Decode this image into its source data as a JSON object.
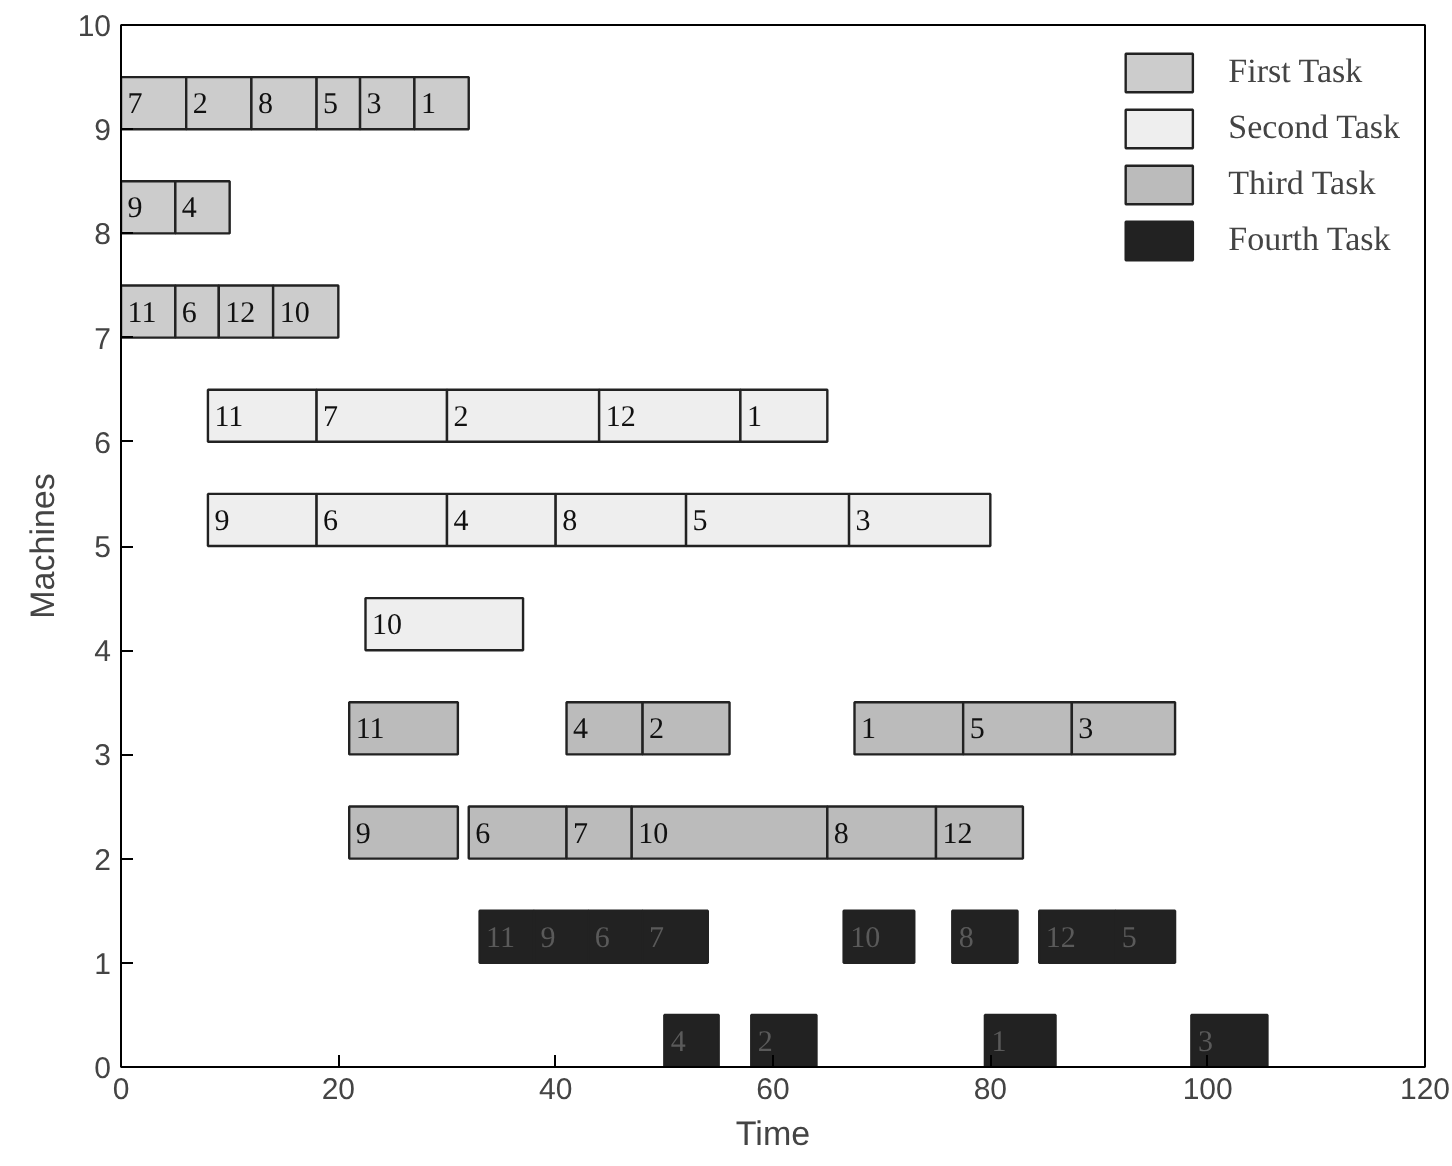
{
  "chart_data": {
    "type": "bar",
    "orientation": "horizontal",
    "xlabel": "Time",
    "ylabel": "Machines",
    "xlim": [
      0,
      120
    ],
    "xticks": [
      0,
      20,
      40,
      60,
      80,
      100,
      120
    ],
    "ylim": [
      0,
      10
    ],
    "yticks": [
      0,
      1,
      2,
      3,
      4,
      5,
      6,
      7,
      8,
      9,
      10
    ],
    "grid": false,
    "legend": "top right",
    "series": [
      {
        "name": "First Task",
        "color": "#cccccc",
        "x": [
          9
        ],
        "base": [
          0
        ],
        "values": [
          6
        ]
      },
      {
        "color": "#cccccc",
        "x": [
          9
        ],
        "base": [
          6
        ],
        "values": [
          6
        ]
      },
      {
        "color": "#cccccc",
        "x": [
          9
        ],
        "base": [
          12
        ],
        "values": [
          6
        ]
      },
      {
        "color": "#cccccc",
        "x": [
          9
        ],
        "base": [
          18
        ],
        "values": [
          4
        ]
      },
      {
        "color": "#cccccc",
        "x": [
          9
        ],
        "base": [
          22
        ],
        "values": [
          5
        ]
      },
      {
        "color": "#cccccc",
        "x": [
          9
        ],
        "base": [
          27
        ],
        "values": [
          5
        ]
      },
      {
        "color": "#cccccc",
        "x": [
          8
        ],
        "base": [
          0
        ],
        "values": [
          5
        ]
      },
      {
        "color": "#cccccc",
        "x": [
          8
        ],
        "base": [
          5
        ],
        "values": [
          5
        ]
      },
      {
        "color": "#cccccc",
        "x": [
          7
        ],
        "base": [
          0
        ],
        "values": [
          5
        ]
      },
      {
        "color": "#cccccc",
        "x": [
          7
        ],
        "base": [
          5
        ],
        "values": [
          4
        ]
      },
      {
        "color": "#cccccc",
        "x": [
          7
        ],
        "base": [
          9
        ],
        "values": [
          5
        ]
      },
      {
        "color": "#cccccc",
        "x": [
          7
        ],
        "base": [
          14
        ],
        "values": [
          6
        ]
      },
      {
        "name": "Second Task",
        "color": "#eeeeee",
        "x": [
          6
        ],
        "base": [
          8
        ],
        "values": [
          10
        ]
      },
      {
        "color": "#eeeeee",
        "x": [
          6
        ],
        "base": [
          18
        ],
        "values": [
          12
        ]
      },
      {
        "color": "#eeeeee",
        "x": [
          6
        ],
        "base": [
          30
        ],
        "values": [
          14
        ]
      },
      {
        "color": "#eeeeee",
        "x": [
          6
        ],
        "base": [
          44
        ],
        "values": [
          13
        ]
      },
      {
        "color": "#eeeeee",
        "x": [
          6
        ],
        "base": [
          57
        ],
        "values": [
          8
        ]
      },
      {
        "color": "#eeeeee",
        "x": [
          5
        ],
        "base": [
          8
        ],
        "values": [
          10
        ]
      },
      {
        "color": "#eeeeee",
        "x": [
          5
        ],
        "base": [
          18
        ],
        "values": [
          12
        ]
      },
      {
        "color": "#eeeeee",
        "x": [
          5
        ],
        "base": [
          30
        ],
        "values": [
          10
        ]
      },
      {
        "color": "#eeeeee",
        "x": [
          5
        ],
        "base": [
          40
        ],
        "values": [
          12
        ]
      },
      {
        "color": "#eeeeee",
        "x": [
          5
        ],
        "base": [
          52
        ],
        "values": [
          15
        ]
      },
      {
        "color": "#eeeeee",
        "x": [
          5
        ],
        "base": [
          67
        ],
        "values": [
          13
        ]
      },
      {
        "color": "#eeeeee",
        "x": [
          4
        ],
        "base": [
          22.5
        ],
        "values": [
          14.5
        ]
      },
      {
        "name": "Third Task",
        "color": "#bbbbbb",
        "x": [
          3
        ],
        "base": [
          21
        ],
        "values": [
          10
        ]
      },
      {
        "color": "#bbbbbb",
        "x": [
          3
        ],
        "base": [
          41
        ],
        "values": [
          7
        ]
      },
      {
        "color": "#bbbbbb",
        "x": [
          3
        ],
        "base": [
          48
        ],
        "values": [
          8
        ]
      },
      {
        "color": "#bbbbbb",
        "x": [
          3
        ],
        "base": [
          67.5
        ],
        "values": [
          10
        ]
      },
      {
        "color": "#bbbbbb",
        "x": [
          3
        ],
        "base": [
          77.5
        ],
        "values": [
          10
        ]
      },
      {
        "color": "#bbbbbb",
        "x": [
          3
        ],
        "base": [
          87.5
        ],
        "values": [
          9.5
        ]
      },
      {
        "color": "#bbbbbb",
        "x": [
          2
        ],
        "base": [
          21
        ],
        "values": [
          10
        ]
      },
      {
        "color": "#bbbbbb",
        "x": [
          2
        ],
        "base": [
          32
        ],
        "values": [
          9
        ]
      },
      {
        "color": "#bbbbbb",
        "x": [
          2
        ],
        "base": [
          41
        ],
        "values": [
          6
        ]
      },
      {
        "color": "#bbbbbb",
        "x": [
          2
        ],
        "base": [
          47
        ],
        "values": [
          18
        ]
      },
      {
        "color": "#bbbbbb",
        "x": [
          2
        ],
        "base": [
          65
        ],
        "values": [
          10
        ]
      },
      {
        "color": "#bbbbbb",
        "x": [
          2
        ],
        "base": [
          75
        ],
        "values": [
          8
        ]
      },
      {
        "name": "Fourth Task",
        "color": "#222222",
        "x": [
          1
        ],
        "base": [
          33
        ],
        "values": [
          5
        ]
      },
      {
        "color": "#222222",
        "x": [
          1
        ],
        "base": [
          38
        ],
        "values": [
          5
        ]
      },
      {
        "color": "#222222",
        "x": [
          1
        ],
        "base": [
          43
        ],
        "values": [
          5
        ]
      },
      {
        "color": "#222222",
        "x": [
          1
        ],
        "base": [
          48
        ],
        "values": [
          6
        ]
      },
      {
        "color": "#222222",
        "x": [
          1
        ],
        "base": [
          66.5
        ],
        "values": [
          6.5
        ]
      },
      {
        "color": "#222222",
        "x": [
          1
        ],
        "base": [
          76.5
        ],
        "values": [
          6
        ]
      },
      {
        "color": "#222222",
        "x": [
          1
        ],
        "base": [
          84.5
        ],
        "values": [
          7
        ]
      },
      {
        "color": "#222222",
        "x": [
          1
        ],
        "base": [
          91.5
        ],
        "values": [
          5.5
        ]
      },
      {
        "color": "#222222",
        "x": [
          0
        ],
        "base": [
          50
        ],
        "values": [
          5
        ]
      },
      {
        "color": "#222222",
        "x": [
          0
        ],
        "base": [
          58
        ],
        "values": [
          6
        ]
      },
      {
        "color": "#222222",
        "x": [
          0
        ],
        "base": [
          79.5
        ],
        "values": [
          6.5
        ]
      },
      {
        "color": "#222222",
        "x": [
          0
        ],
        "base": [
          98.5
        ],
        "values": [
          7
        ]
      }
    ],
    "annotations": [
      {
        "text": "11",
        "x": 0,
        "y": 7
      },
      {
        "text": "6",
        "x": 5,
        "y": 7
      },
      {
        "text": "12",
        "x": 9,
        "y": 7
      },
      {
        "text": "10",
        "x": 14,
        "y": 7
      },
      {
        "text": "9",
        "x": 0,
        "y": 8
      },
      {
        "text": "4",
        "x": 5,
        "y": 8
      },
      {
        "text": "7",
        "x": 0,
        "y": 9
      },
      {
        "text": "2",
        "x": 6,
        "y": 9
      },
      {
        "text": "8",
        "x": 12,
        "y": 9
      },
      {
        "text": "5",
        "x": 18,
        "y": 9
      },
      {
        "text": "3",
        "x": 22,
        "y": 9
      },
      {
        "text": "1",
        "x": 27,
        "y": 9
      },
      {
        "text": "10",
        "x": 22.5,
        "y": 4
      },
      {
        "text": "9",
        "x": 8,
        "y": 5
      },
      {
        "text": "6",
        "x": 18,
        "y": 5
      },
      {
        "text": "4",
        "x": 30,
        "y": 5
      },
      {
        "text": "8",
        "x": 40,
        "y": 5
      },
      {
        "text": "5",
        "x": 52,
        "y": 5
      },
      {
        "text": "3",
        "x": 67,
        "y": 5
      },
      {
        "text": "11",
        "x": 8,
        "y": 6
      },
      {
        "text": "7",
        "x": 18,
        "y": 6
      },
      {
        "text": "2",
        "x": 30,
        "y": 6
      },
      {
        "text": "12",
        "x": 44,
        "y": 6
      },
      {
        "text": "1",
        "x": 57,
        "y": 6
      },
      {
        "text": "9",
        "x": 21,
        "y": 2
      },
      {
        "text": "6",
        "x": 32,
        "y": 2
      },
      {
        "text": "7",
        "x": 41,
        "y": 2
      },
      {
        "text": "10",
        "x": 47,
        "y": 2
      },
      {
        "text": "8",
        "x": 65,
        "y": 2
      },
      {
        "text": "12",
        "x": 75,
        "y": 2
      },
      {
        "text": "11",
        "x": 21,
        "y": 3
      },
      {
        "text": "4",
        "x": 41,
        "y": 3
      },
      {
        "text": "2",
        "x": 48,
        "y": 3
      },
      {
        "text": "1",
        "x": 67.5,
        "y": 3
      },
      {
        "text": "5",
        "x": 77.5,
        "y": 3
      },
      {
        "text": "3",
        "x": 87.5,
        "y": 3
      },
      {
        "text": "4",
        "x": 50,
        "y": 0
      },
      {
        "text": "2",
        "x": 58,
        "y": 0
      },
      {
        "text": "1",
        "x": 79.5,
        "y": 0
      },
      {
        "text": "3",
        "x": 98.5,
        "y": 0
      },
      {
        "text": "11",
        "x": 33,
        "y": 1
      },
      {
        "text": "9",
        "x": 38,
        "y": 1
      },
      {
        "text": "6",
        "x": 43,
        "y": 1
      },
      {
        "text": "7",
        "x": 48,
        "y": 1
      },
      {
        "text": "10",
        "x": 66.5,
        "y": 1
      },
      {
        "text": "8",
        "x": 76.5,
        "y": 1
      },
      {
        "text": "12",
        "x": 84.5,
        "y": 1
      },
      {
        "text": "5",
        "x": 91.5,
        "y": 1
      }
    ]
  }
}
